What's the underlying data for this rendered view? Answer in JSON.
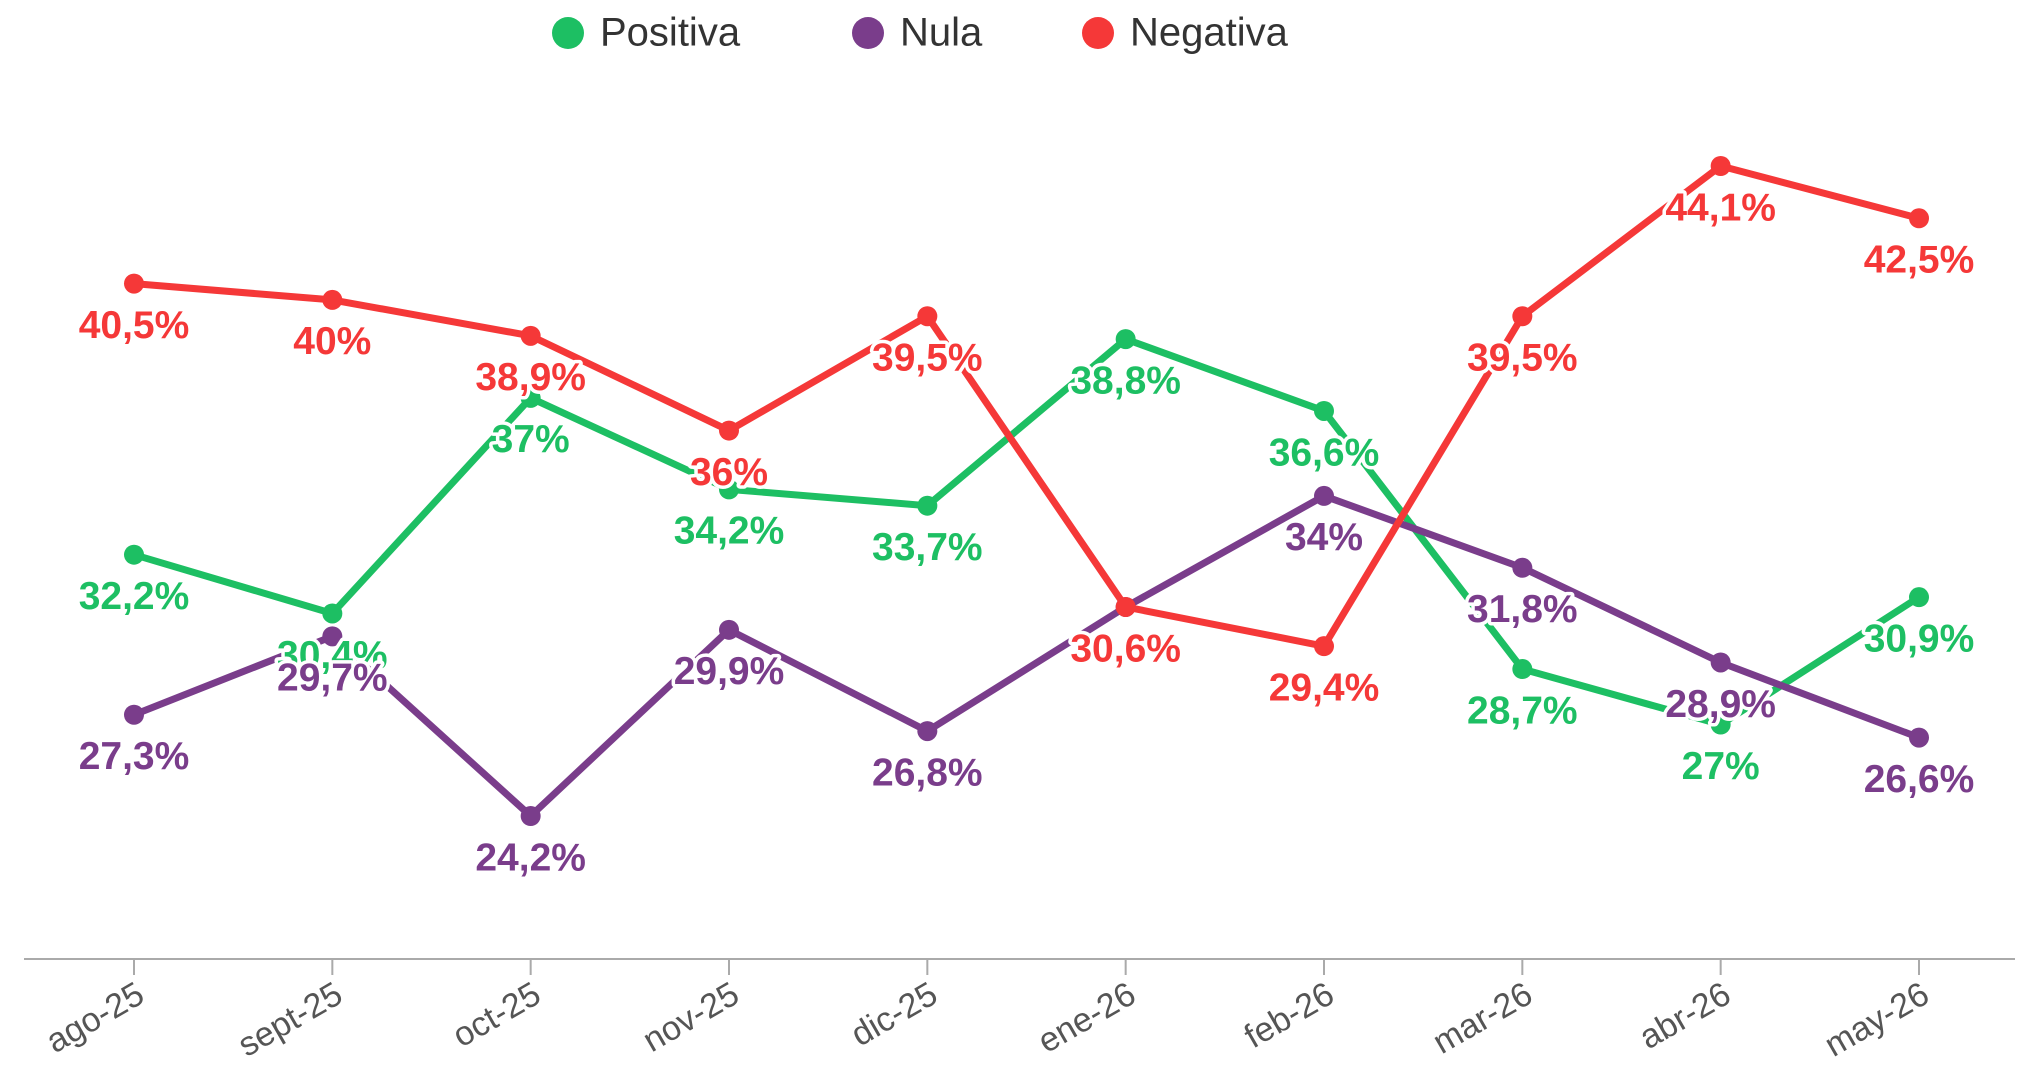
{
  "chart_data": {
    "type": "line",
    "categories": [
      "ago-25",
      "sept-25",
      "oct-25",
      "nov-25",
      "dic-25",
      "ene-26",
      "feb-26",
      "mar-26",
      "abr-26",
      "may-26"
    ],
    "series": [
      {
        "name": "Positiva",
        "color": "#1dbf63",
        "values": [
          32.2,
          30.4,
          37,
          34.2,
          33.7,
          38.8,
          36.6,
          28.7,
          27,
          30.9
        ],
        "value_labels": [
          "32,2%",
          "30,4%",
          "37%",
          "34,2%",
          "33,7%",
          "38,8%",
          "36,6%",
          "28,7%",
          "27%",
          "30,9%"
        ]
      },
      {
        "name": "Nula",
        "color": "#7a3d8b",
        "values": [
          27.3,
          29.7,
          24.2,
          29.9,
          26.8,
          30.6,
          34,
          31.8,
          28.9,
          26.6
        ],
        "value_labels": [
          "27,3%",
          "29,7%",
          "24,2%",
          "29,9%",
          "26,8%",
          null,
          "34%",
          "31,8%",
          "28,9%",
          "26,6%"
        ]
      },
      {
        "name": "Negativa",
        "color": "#f53838",
        "values": [
          40.5,
          40,
          38.9,
          36,
          39.5,
          30.6,
          29.4,
          39.5,
          44.1,
          42.5
        ],
        "value_labels": [
          "40,5%",
          "40%",
          "38,9%",
          "36%",
          "39,5%",
          "30,6%",
          "29,4%",
          "39,5%",
          "44,1%",
          "42,5%"
        ]
      }
    ],
    "legend": "top"
  }
}
